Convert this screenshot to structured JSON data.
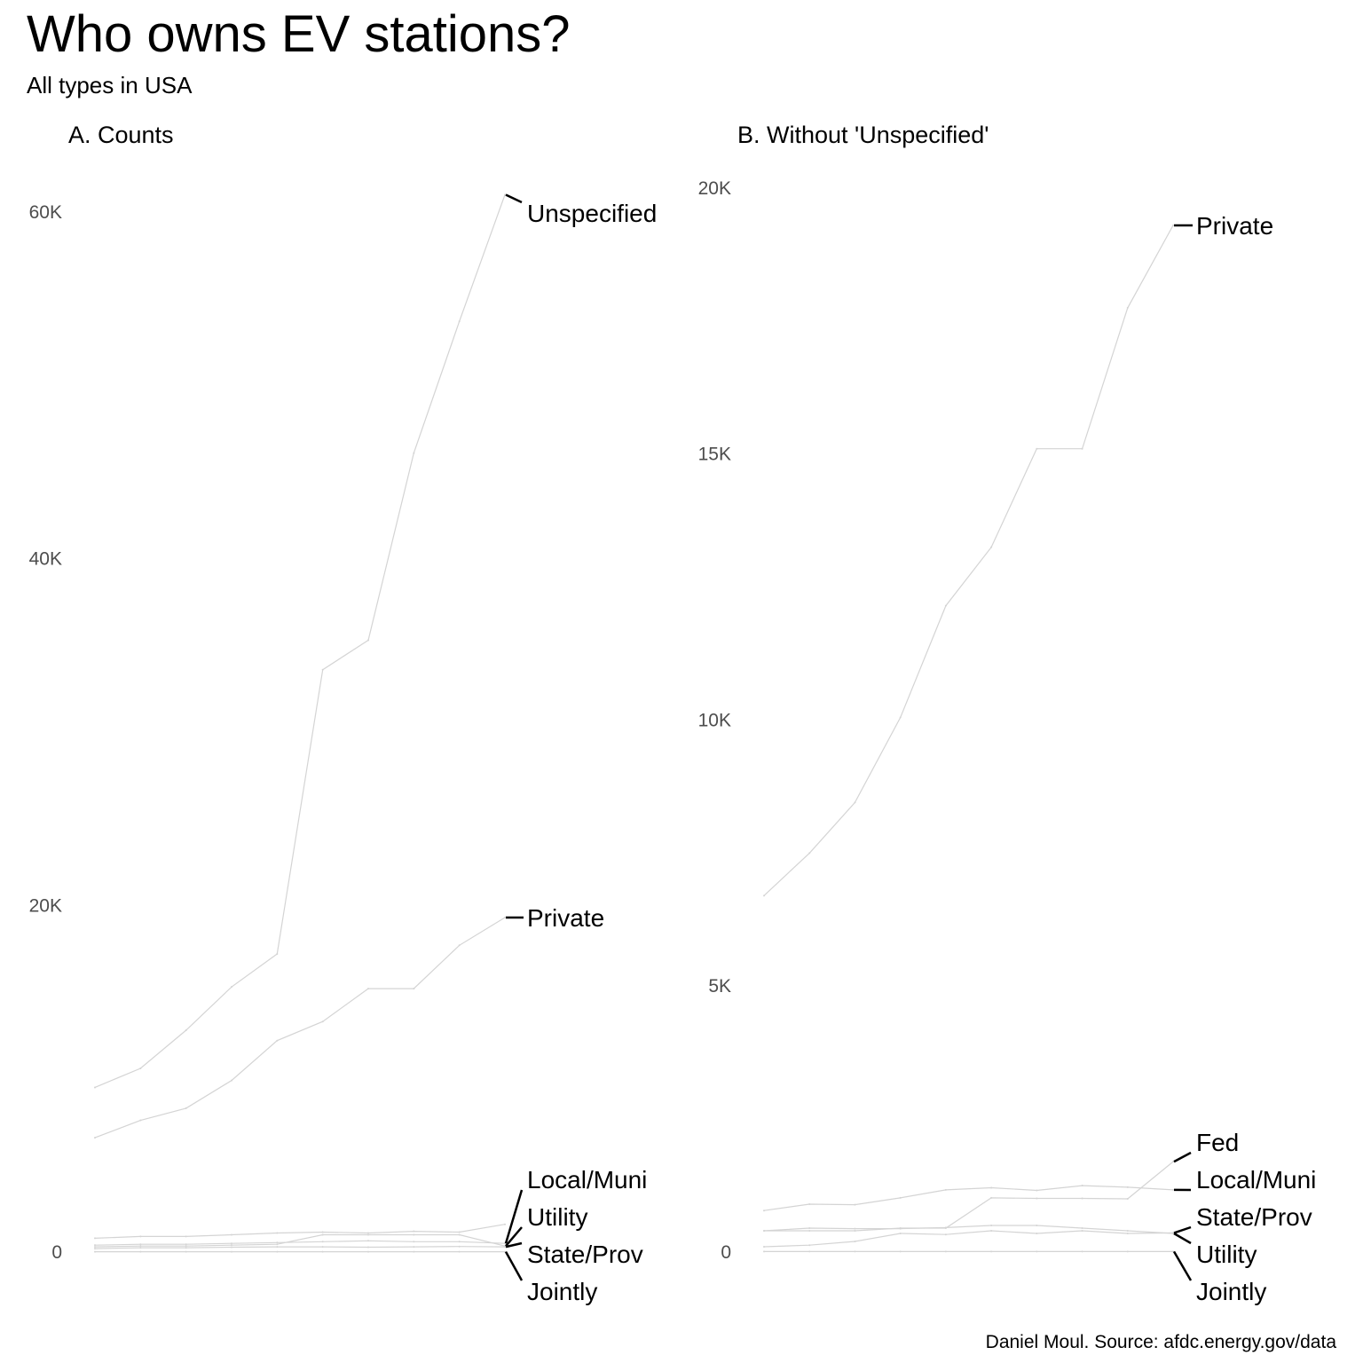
{
  "title": "Who owns EV stations?",
  "subtitle": "All types in USA",
  "caption": "Daniel Moul. Source: afdc.energy.gov/data",
  "colors": {
    "line": "#d4d4d4",
    "label_line": "#000000",
    "tick_text": "#4d4d4d"
  },
  "chart_data": [
    {
      "type": "line",
      "title": "A. Counts",
      "xlabel": "",
      "ylabel": "",
      "grid": false,
      "ylim": [
        0,
        62000
      ],
      "yticks": [
        0,
        20000,
        40000,
        60000
      ],
      "ytick_labels": [
        "0",
        "20K",
        "40K",
        "60K"
      ],
      "x": [
        1,
        2,
        3,
        4,
        5,
        6,
        7,
        8,
        9,
        10
      ],
      "series": [
        {
          "name": "Unspecified",
          "values": [
            9500,
            10600,
            12800,
            15300,
            17200,
            33600,
            35300,
            46100,
            53700,
            61000
          ]
        },
        {
          "name": "Private",
          "values": [
            6600,
            7600,
            8300,
            9900,
            12200,
            13300,
            15200,
            15200,
            17700,
            19300
          ]
        },
        {
          "name": "Fed",
          "values": [
            800,
            900,
            900,
            1000,
            1100,
            1150,
            1100,
            1200,
            1150,
            1600
          ]
        },
        {
          "name": "Local/Muni",
          "values": [
            400,
            450,
            450,
            500,
            550,
            600,
            650,
            600,
            600,
            500
          ]
        },
        {
          "name": "Utility",
          "values": [
            300,
            350,
            350,
            400,
            450,
            1000,
            1000,
            1000,
            1000,
            350
          ]
        },
        {
          "name": "State/Prov",
          "values": [
            200,
            250,
            250,
            280,
            300,
            300,
            280,
            300,
            320,
            300
          ]
        },
        {
          "name": "Jointly",
          "values": [
            20,
            20,
            20,
            20,
            20,
            20,
            20,
            20,
            20,
            20
          ]
        }
      ],
      "end_labels": [
        "Unspecified",
        "Private",
        "Local/Muni",
        "Utility",
        "State/Prov",
        "Jointly"
      ]
    },
    {
      "type": "line",
      "title": "B. Without 'Unspecified'",
      "xlabel": "",
      "ylabel": "",
      "grid": false,
      "ylim": [
        0,
        20200
      ],
      "yticks": [
        0,
        5000,
        10000,
        15000,
        20000
      ],
      "ytick_labels": [
        "0",
        "5K",
        "10K",
        "15K",
        "20K"
      ],
      "x": [
        1,
        2,
        3,
        4,
        5,
        6,
        7,
        8,
        9,
        10
      ],
      "series": [
        {
          "name": "Private",
          "values": [
            6700,
            7500,
            8450,
            10050,
            12150,
            13250,
            15100,
            15100,
            17750,
            19300
          ]
        },
        {
          "name": "Fed",
          "values": [
            400,
            400,
            400,
            450,
            450,
            1020,
            1010,
            1010,
            1000,
            1700
          ]
        },
        {
          "name": "Local/Muni",
          "values": [
            780,
            900,
            890,
            1020,
            1170,
            1210,
            1160,
            1250,
            1220,
            1170
          ]
        },
        {
          "name": "Utility",
          "values": [
            400,
            450,
            440,
            440,
            460,
            500,
            500,
            450,
            400,
            350
          ]
        },
        {
          "name": "State/Prov",
          "values": [
            100,
            130,
            200,
            350,
            330,
            400,
            350,
            400,
            350,
            360
          ]
        },
        {
          "name": "Jointly",
          "values": [
            10,
            10,
            10,
            10,
            10,
            10,
            10,
            10,
            10,
            10
          ]
        }
      ],
      "end_labels": [
        "Private",
        "Fed",
        "Local/Muni",
        "Utility",
        "State/Prov",
        "Jointly"
      ]
    }
  ]
}
